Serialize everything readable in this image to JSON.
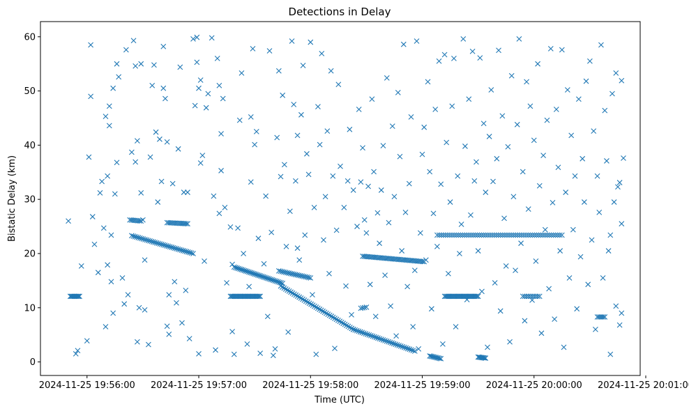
{
  "chart_data": {
    "type": "scatter",
    "title": "Detections in Delay",
    "xlabel": "Time (UTC)",
    "ylabel": "Bistatic Delay (km)",
    "marker": "x",
    "color": "#1f77b4",
    "xlim": [
      -16,
      306
    ],
    "x_unit": "seconds after 2024-11-25 19:55:51 UTC",
    "ylim": [
      -2.5,
      62.8
    ],
    "x_ticks": [
      {
        "value": 9,
        "label": "2024-11-25 19:56:00"
      },
      {
        "value": 69,
        "label": "2024-11-25 19:57:00"
      },
      {
        "value": 129,
        "label": "2024-11-25 19:58:00"
      },
      {
        "value": 189,
        "label": "2024-11-25 19:59:00"
      },
      {
        "value": 249,
        "label": "2024-11-25 20:00:00"
      },
      {
        "value": 309,
        "label": "2024-11-25 20:01:00"
      }
    ],
    "y_ticks": [
      {
        "value": 0,
        "label": "0"
      },
      {
        "value": 10,
        "label": "10"
      },
      {
        "value": 20,
        "label": "20"
      },
      {
        "value": 30,
        "label": "30"
      },
      {
        "value": 40,
        "label": "40"
      },
      {
        "value": 50,
        "label": "50"
      },
      {
        "value": 60,
        "label": "60"
      }
    ],
    "tracks": [
      {
        "name": "track-12km-a",
        "x0": 0,
        "y0": 12.1,
        "x1": 5,
        "y1": 12.1,
        "n": 10
      },
      {
        "name": "track-12km-b",
        "x0": 86,
        "y0": 12.1,
        "x1": 102,
        "y1": 12.1,
        "n": 26
      },
      {
        "name": "track-12km-c",
        "x0": 201,
        "y0": 12.1,
        "x1": 219,
        "y1": 12.1,
        "n": 28
      },
      {
        "name": "track-12km-d",
        "x0": 243,
        "y0": 12.1,
        "x1": 252,
        "y1": 12.1,
        "n": 10
      },
      {
        "name": "track-23km",
        "x0": 197,
        "y0": 23.4,
        "x1": 264,
        "y1": 23.4,
        "n": 60
      },
      {
        "name": "track-25km-a",
        "x0": 32,
        "y0": 26.2,
        "x1": 38,
        "y1": 26.0,
        "n": 8
      },
      {
        "name": "track-25km-b",
        "x0": 52,
        "y0": 25.7,
        "x1": 63,
        "y1": 25.5,
        "n": 14
      },
      {
        "name": "track-desc-1",
        "x0": 33,
        "y0": 23.3,
        "x1": 66,
        "y1": 20.0,
        "n": 38
      },
      {
        "name": "track-desc-2",
        "x0": 88,
        "y0": 17.5,
        "x1": 114,
        "y1": 14.5,
        "n": 34
      },
      {
        "name": "track-desc-3",
        "x0": 112,
        "y0": 16.8,
        "x1": 129,
        "y1": 15.5,
        "n": 20
      },
      {
        "name": "track-desc-4",
        "x0": 113,
        "y0": 14.0,
        "x1": 152,
        "y1": 6.0,
        "n": 44
      },
      {
        "name": "track-desc-5",
        "x0": 152,
        "y0": 6.0,
        "x1": 185,
        "y1": 2.0,
        "n": 36
      },
      {
        "name": "track-arc-18km",
        "x0": 157,
        "y0": 19.5,
        "x1": 190,
        "y1": 18.5,
        "n": 40
      },
      {
        "name": "track-1km-a",
        "x0": 193,
        "y0": 1.1,
        "x1": 199,
        "y1": 0.6,
        "n": 10
      },
      {
        "name": "track-1km-b",
        "x0": 219,
        "y0": 0.9,
        "x1": 223,
        "y1": 0.7,
        "n": 8
      },
      {
        "name": "track-8km",
        "x0": 283,
        "y0": 8.3,
        "x1": 287,
        "y1": 8.3,
        "n": 6
      },
      {
        "name": "track-10km",
        "x0": 156,
        "y0": 9.9,
        "x1": 159,
        "y1": 10.1,
        "n": 4
      }
    ],
    "scatter_points": [
      [
        -1,
        26
      ],
      [
        3,
        1.5
      ],
      [
        4,
        2.1
      ],
      [
        6,
        17.7
      ],
      [
        9,
        3.9
      ],
      [
        10,
        37.8
      ],
      [
        11,
        58.5
      ],
      [
        11,
        49
      ],
      [
        12,
        26.8
      ],
      [
        13,
        21.7
      ],
      [
        15,
        16.5
      ],
      [
        16,
        31.2
      ],
      [
        17,
        33.3
      ],
      [
        18,
        24.7
      ],
      [
        19,
        45.3
      ],
      [
        19,
        6.5
      ],
      [
        20,
        34.3
      ],
      [
        20,
        17.9
      ],
      [
        21,
        43.6
      ],
      [
        21,
        47.2
      ],
      [
        22,
        23.4
      ],
      [
        22,
        14.8
      ],
      [
        23,
        9
      ],
      [
        23,
        50.5
      ],
      [
        24,
        31
      ],
      [
        25,
        36.8
      ],
      [
        25,
        55
      ],
      [
        26,
        52.6
      ],
      [
        28,
        15.5
      ],
      [
        29,
        10.7
      ],
      [
        30,
        57.6
      ],
      [
        31,
        12.4
      ],
      [
        33,
        38.7
      ],
      [
        34,
        59.3
      ],
      [
        35,
        54.6
      ],
      [
        35,
        36.9
      ],
      [
        36,
        40.8
      ],
      [
        36,
        3.7
      ],
      [
        37,
        10
      ],
      [
        38,
        55
      ],
      [
        38,
        31.2
      ],
      [
        39,
        26.2
      ],
      [
        40,
        18.8
      ],
      [
        40,
        9.6
      ],
      [
        42,
        3.2
      ],
      [
        43,
        37.8
      ],
      [
        44,
        51
      ],
      [
        45,
        54.8
      ],
      [
        46,
        42.4
      ],
      [
        47,
        29.5
      ],
      [
        48,
        41.1
      ],
      [
        49,
        33.3
      ],
      [
        50,
        50.5
      ],
      [
        50,
        58.2
      ],
      [
        51,
        48.6
      ],
      [
        52,
        40.6
      ],
      [
        52,
        6.6
      ],
      [
        53,
        5.1
      ],
      [
        53,
        12.4
      ],
      [
        55,
        32.9
      ],
      [
        56,
        14.8
      ],
      [
        57,
        10.9
      ],
      [
        58,
        39.3
      ],
      [
        59,
        54.4
      ],
      [
        60,
        7.2
      ],
      [
        61,
        31.3
      ],
      [
        62,
        13.2
      ],
      [
        63,
        31.3
      ],
      [
        64,
        4.3
      ],
      [
        66,
        59.6
      ],
      [
        67,
        47.3
      ],
      [
        68,
        59.9
      ],
      [
        68,
        55.3
      ],
      [
        69,
        1.5
      ],
      [
        69,
        50.5
      ],
      [
        70,
        52
      ],
      [
        70,
        36.7
      ],
      [
        71,
        38.1
      ],
      [
        72,
        18.6
      ],
      [
        73,
        46.9
      ],
      [
        74,
        49.5
      ],
      [
        76,
        59.8
      ],
      [
        77,
        30.6
      ],
      [
        78,
        2.2
      ],
      [
        79,
        56
      ],
      [
        80,
        51
      ],
      [
        80,
        27.4
      ],
      [
        81,
        42.1
      ],
      [
        81,
        35.3
      ],
      [
        82,
        48.6
      ],
      [
        83,
        28.5
      ],
      [
        84,
        14.6
      ],
      [
        86,
        24.9
      ],
      [
        87,
        18
      ],
      [
        87,
        5.6
      ],
      [
        88,
        1.4
      ],
      [
        90,
        24.7
      ],
      [
        91,
        44.6
      ],
      [
        92,
        53.3
      ],
      [
        93,
        20
      ],
      [
        95,
        3.3
      ],
      [
        96,
        13.9
      ],
      [
        97,
        33.2
      ],
      [
        97,
        45.2
      ],
      [
        98,
        57.8
      ],
      [
        99,
        40.1
      ],
      [
        100,
        42.5
      ],
      [
        101,
        22.8
      ],
      [
        102,
        1.6
      ],
      [
        104,
        18.1
      ],
      [
        105,
        30.6
      ],
      [
        106,
        8.4
      ],
      [
        107,
        57.4
      ],
      [
        108,
        23.9
      ],
      [
        109,
        1.2
      ],
      [
        110,
        2.4
      ],
      [
        111,
        41.4
      ],
      [
        112,
        53.7
      ],
      [
        113,
        34.2
      ],
      [
        114,
        49.2
      ],
      [
        115,
        36.4
      ],
      [
        116,
        21.3
      ],
      [
        117,
        5.5
      ],
      [
        118,
        27.8
      ],
      [
        119,
        59.2
      ],
      [
        120,
        47.5
      ],
      [
        121,
        33.4
      ],
      [
        122,
        21
      ],
      [
        122,
        41.8
      ],
      [
        123,
        18.8
      ],
      [
        124,
        45.6
      ],
      [
        125,
        54.7
      ],
      [
        126,
        23.4
      ],
      [
        127,
        38.4
      ],
      [
        128,
        34.6
      ],
      [
        129,
        59
      ],
      [
        130,
        12.4
      ],
      [
        131,
        28.5
      ],
      [
        132,
        1.4
      ],
      [
        133,
        47.1
      ],
      [
        134,
        40.1
      ],
      [
        135,
        56.9
      ],
      [
        136,
        22.5
      ],
      [
        137,
        30.5
      ],
      [
        138,
        42.6
      ],
      [
        139,
        16.3
      ],
      [
        140,
        53.7
      ],
      [
        141,
        34.3
      ],
      [
        142,
        2.5
      ],
      [
        143,
        24.3
      ],
      [
        144,
        51.2
      ],
      [
        145,
        36.1
      ],
      [
        147,
        28.5
      ],
      [
        148,
        14
      ],
      [
        149,
        33.4
      ],
      [
        150,
        42.9
      ],
      [
        151,
        8.7
      ],
      [
        152,
        31.7
      ],
      [
        154,
        25
      ],
      [
        155,
        46.6
      ],
      [
        156,
        33.2
      ],
      [
        157,
        39.5
      ],
      [
        158,
        26.2
      ],
      [
        159,
        23.8
      ],
      [
        160,
        32.4
      ],
      [
        161,
        14.3
      ],
      [
        162,
        48.5
      ],
      [
        163,
        35.1
      ],
      [
        164,
        8.4
      ],
      [
        165,
        27.5
      ],
      [
        166,
        21.9
      ],
      [
        167,
        31.7
      ],
      [
        168,
        39.9
      ],
      [
        169,
        16
      ],
      [
        170,
        52.4
      ],
      [
        171,
        25.7
      ],
      [
        172,
        10.3
      ],
      [
        173,
        43.5
      ],
      [
        174,
        30.5
      ],
      [
        175,
        4.8
      ],
      [
        176,
        49.7
      ],
      [
        177,
        37.9
      ],
      [
        178,
        20.5
      ],
      [
        179,
        58.6
      ],
      [
        180,
        27.6
      ],
      [
        181,
        13.9
      ],
      [
        182,
        32.9
      ],
      [
        183,
        45.2
      ],
      [
        184,
        6.5
      ],
      [
        185,
        16.9
      ],
      [
        186,
        59.2
      ],
      [
        187,
        2.4
      ],
      [
        188,
        23.8
      ],
      [
        189,
        38.3
      ],
      [
        190,
        43.3
      ],
      [
        191,
        18.8
      ],
      [
        192,
        51.7
      ],
      [
        193,
        35.1
      ],
      [
        194,
        9.8
      ],
      [
        195,
        27.4
      ],
      [
        196,
        46.6
      ],
      [
        197,
        21.3
      ],
      [
        198,
        55.5
      ],
      [
        199,
        32.8
      ],
      [
        200,
        3.3
      ],
      [
        201,
        56.7
      ],
      [
        202,
        40.5
      ],
      [
        203,
        16.3
      ],
      [
        204,
        29.5
      ],
      [
        205,
        47.2
      ],
      [
        206,
        56
      ],
      [
        207,
        6.5
      ],
      [
        208,
        34.3
      ],
      [
        209,
        20
      ],
      [
        210,
        25.4
      ],
      [
        211,
        59.6
      ],
      [
        212,
        39.8
      ],
      [
        213,
        11.5
      ],
      [
        214,
        48.5
      ],
      [
        215,
        27.1
      ],
      [
        216,
        57.3
      ],
      [
        217,
        33.4
      ],
      [
        218,
        36.9
      ],
      [
        219,
        20.5
      ],
      [
        220,
        56.1
      ],
      [
        221,
        13
      ],
      [
        222,
        44
      ],
      [
        223,
        31.3
      ],
      [
        224,
        2.7
      ],
      [
        225,
        41.6
      ],
      [
        226,
        50.2
      ],
      [
        227,
        33.3
      ],
      [
        228,
        14.6
      ],
      [
        229,
        37.5
      ],
      [
        230,
        57.5
      ],
      [
        231,
        9.4
      ],
      [
        232,
        45.4
      ],
      [
        233,
        26.5
      ],
      [
        234,
        17.7
      ],
      [
        235,
        39.7
      ],
      [
        236,
        3.7
      ],
      [
        237,
        52.8
      ],
      [
        238,
        30.5
      ],
      [
        239,
        16.9
      ],
      [
        240,
        43.8
      ],
      [
        241,
        59.6
      ],
      [
        242,
        21.9
      ],
      [
        243,
        35.1
      ],
      [
        244,
        7.6
      ],
      [
        245,
        51.7
      ],
      [
        246,
        28.2
      ],
      [
        247,
        47.2
      ],
      [
        248,
        11.4
      ],
      [
        249,
        40.9
      ],
      [
        250,
        18.6
      ],
      [
        251,
        55
      ],
      [
        252,
        32.5
      ],
      [
        253,
        5.3
      ],
      [
        254,
        38.1
      ],
      [
        255,
        24.4
      ],
      [
        256,
        44.6
      ],
      [
        257,
        13.5
      ],
      [
        258,
        57.8
      ],
      [
        259,
        29.4
      ],
      [
        260,
        7.9
      ],
      [
        261,
        46.6
      ],
      [
        262,
        35.9
      ],
      [
        263,
        20.5
      ],
      [
        264,
        57.6
      ],
      [
        265,
        2.7
      ],
      [
        266,
        31.3
      ],
      [
        267,
        50.2
      ],
      [
        268,
        15.5
      ],
      [
        269,
        41.8
      ],
      [
        270,
        24.4
      ],
      [
        271,
        34.3
      ],
      [
        272,
        9.8
      ],
      [
        273,
        48.5
      ],
      [
        274,
        19.4
      ],
      [
        275,
        37.5
      ],
      [
        276,
        29.5
      ],
      [
        277,
        51.8
      ],
      [
        278,
        14.3
      ],
      [
        279,
        55.5
      ],
      [
        280,
        22.5
      ],
      [
        281,
        42.6
      ],
      [
        282,
        6
      ],
      [
        283,
        34.3
      ],
      [
        284,
        27.6
      ],
      [
        285,
        58.5
      ],
      [
        286,
        15.5
      ],
      [
        287,
        46.4
      ],
      [
        288,
        37.1
      ],
      [
        289,
        20.5
      ],
      [
        290,
        1.4
      ],
      [
        290,
        23.4
      ],
      [
        291,
        49.5
      ],
      [
        292,
        29.5
      ],
      [
        293,
        53.3
      ],
      [
        293,
        10.3
      ],
      [
        294,
        32.3
      ],
      [
        295,
        6.8
      ],
      [
        295,
        33.1
      ],
      [
        296,
        25.5
      ],
      [
        296,
        51.9
      ],
      [
        296,
        9
      ],
      [
        297,
        37.6
      ]
    ]
  }
}
